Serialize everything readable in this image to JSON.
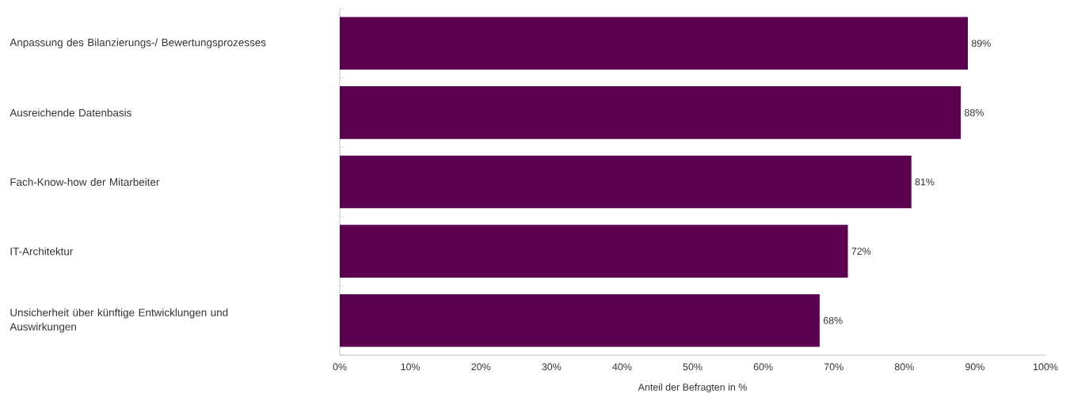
{
  "chart_data": {
    "type": "bar",
    "orientation": "horizontal",
    "categories": [
      "Anpassung des Bilanzierungs-/ Bewertungsprozesses",
      "Ausreichende Datenbasis",
      "Fach-Know-how der Mitarbeiter",
      "IT-Architektur",
      "Unsicherheit über künftige Entwicklungen und Auswirkungen"
    ],
    "values": [
      89,
      88,
      81,
      72,
      68
    ],
    "value_labels": [
      "89%",
      "88%",
      "81%",
      "72%",
      "68%"
    ],
    "color": "#5c0050",
    "xlabel": "Anteil der Befragten in %",
    "xlim": [
      0,
      100
    ],
    "xticks": [
      {
        "value": 0,
        "label": "0%"
      },
      {
        "value": 10,
        "label": "10%"
      },
      {
        "value": 20,
        "label": "20%"
      },
      {
        "value": 30,
        "label": "30%"
      },
      {
        "value": 40,
        "label": "40%"
      },
      {
        "value": 50,
        "label": "50%"
      },
      {
        "value": 60,
        "label": "60%"
      },
      {
        "value": 70,
        "label": "70%"
      },
      {
        "value": 80,
        "label": "80%"
      },
      {
        "value": 90,
        "label": "90%"
      },
      {
        "value": 100,
        "label": "100%"
      }
    ],
    "grid": false
  }
}
